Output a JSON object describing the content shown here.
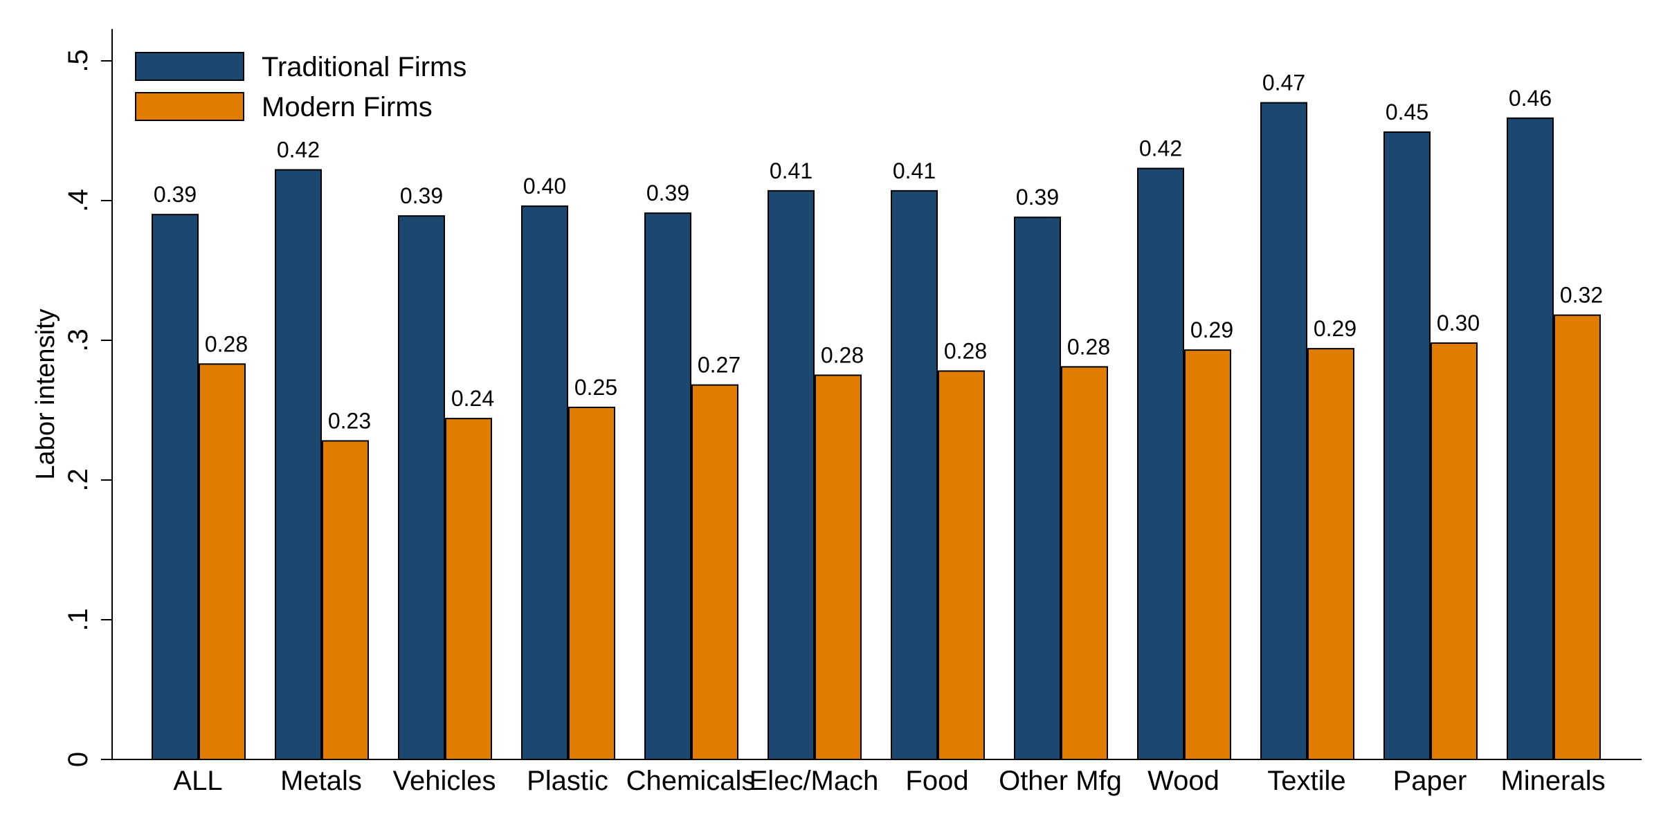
{
  "chart_data": {
    "type": "bar",
    "ylabel": "Labor intensity",
    "xlabel": "",
    "ylim": [
      0,
      0.52
    ],
    "yticks": [
      {
        "value": 0,
        "label": "0"
      },
      {
        "value": 0.1,
        "label": ".1"
      },
      {
        "value": 0.2,
        "label": ".2"
      },
      {
        "value": 0.3,
        "label": ".3"
      },
      {
        "value": 0.4,
        "label": ".4"
      },
      {
        "value": 0.5,
        "label": ".5"
      }
    ],
    "grid": false,
    "legend_position": "top-left",
    "categories": [
      "ALL",
      "Metals",
      "Vehicles",
      "Plastic",
      "Chemicals",
      "Elec/Mach",
      "Food",
      "Other Mfg",
      "Wood",
      "Textile",
      "Paper",
      "Minerals"
    ],
    "series": [
      {
        "name": "Traditional Firms",
        "color": "#1c476f",
        "values": [
          0.39,
          0.422,
          0.389,
          0.396,
          0.391,
          0.407,
          0.407,
          0.388,
          0.423,
          0.47,
          0.449,
          0.459
        ],
        "labels": [
          "0.39",
          "0.42",
          "0.39",
          "0.40",
          "0.39",
          "0.41",
          "0.41",
          "0.39",
          "0.42",
          "0.47",
          "0.45",
          "0.46"
        ]
      },
      {
        "name": "Modern Firms",
        "color": "#e07c00",
        "values": [
          0.283,
          0.228,
          0.244,
          0.252,
          0.268,
          0.275,
          0.278,
          0.281,
          0.293,
          0.294,
          0.298,
          0.318
        ],
        "labels": [
          "0.28",
          "0.23",
          "0.24",
          "0.25",
          "0.27",
          "0.28",
          "0.28",
          "0.28",
          "0.29",
          "0.29",
          "0.30",
          "0.32"
        ]
      }
    ]
  }
}
